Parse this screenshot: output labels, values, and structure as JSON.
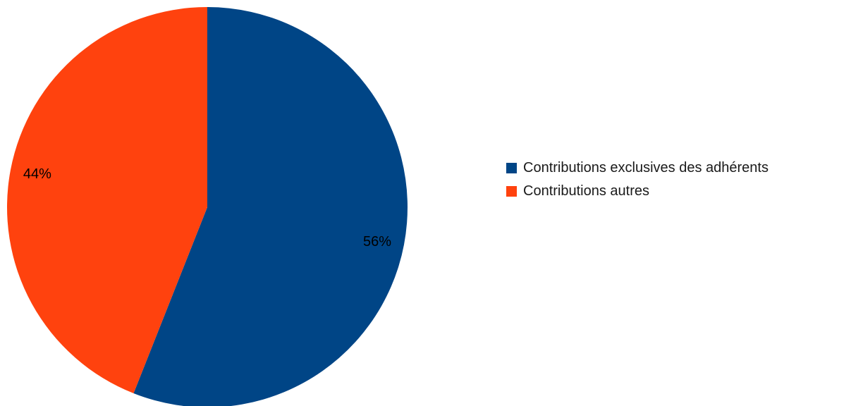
{
  "chart_data": {
    "type": "pie",
    "title": "",
    "slices": [
      {
        "name": "Contributions exclusives des adhérents",
        "value": 56,
        "label": "56%",
        "color": "#004586"
      },
      {
        "name": "Contributions autres",
        "value": 44,
        "label": "44%",
        "color": "#ff420e"
      }
    ],
    "start_angle": "12 o'clock",
    "direction": "clockwise",
    "legend_position": "right"
  }
}
